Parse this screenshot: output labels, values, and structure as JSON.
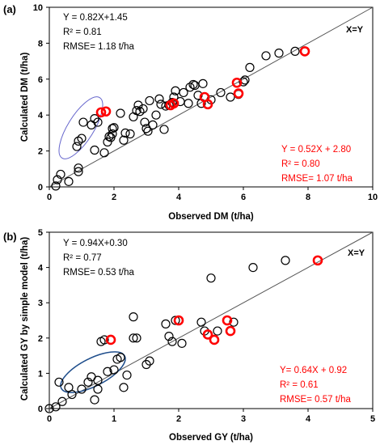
{
  "chart_data": [
    {
      "type": "scatter",
      "panel_label": "(a)",
      "xlabel": "Observed DM (t/ha)",
      "ylabel": "Calculated DM (t/ha)",
      "xlim": [
        0,
        10
      ],
      "ylim": [
        0,
        10
      ],
      "xticks": [
        0,
        2,
        4,
        6,
        8,
        10
      ],
      "yticks": [
        0,
        2,
        4,
        6,
        8,
        10
      ],
      "grid": false,
      "one_to_one_line_label": "X=Y",
      "annotations": {
        "black": [
          "Y = 0.82X+1.45",
          "R² = 0.81",
          "RMSE= 1.18 t/ha"
        ],
        "red": [
          "Y = 0.52X + 2.80",
          "R² = 0.80",
          "RMSE= 1.07 t/ha"
        ]
      },
      "ellipse_color": "#6666cc",
      "series": [
        {
          "color": "#000000",
          "points": [
            [
              0.2,
              0.05
            ],
            [
              0.25,
              0.4
            ],
            [
              0.35,
              0.7
            ],
            [
              0.6,
              0.3
            ],
            [
              0.9,
              1.05
            ],
            [
              0.9,
              0.85
            ],
            [
              0.85,
              2.25
            ],
            [
              0.9,
              2.55
            ],
            [
              1.0,
              2.7
            ],
            [
              1.05,
              3.6
            ],
            [
              1.3,
              3.45
            ],
            [
              1.4,
              3.8
            ],
            [
              1.5,
              3.6
            ],
            [
              1.4,
              2.05
            ],
            [
              1.7,
              1.9
            ],
            [
              1.8,
              2.5
            ],
            [
              1.85,
              2.8
            ],
            [
              1.9,
              2.75
            ],
            [
              1.95,
              2.95
            ],
            [
              2.0,
              3.3
            ],
            [
              1.95,
              3.25
            ],
            [
              2.2,
              4.1
            ],
            [
              2.3,
              2.6
            ],
            [
              2.35,
              3.0
            ],
            [
              2.5,
              2.95
            ],
            [
              2.6,
              3.9
            ],
            [
              2.7,
              4.25
            ],
            [
              2.75,
              4.55
            ],
            [
              2.8,
              4.2
            ],
            [
              2.9,
              4.35
            ],
            [
              2.95,
              3.6
            ],
            [
              3.0,
              3.25
            ],
            [
              3.05,
              3.1
            ],
            [
              3.1,
              4.8
            ],
            [
              3.2,
              3.45
            ],
            [
              3.3,
              4.0
            ],
            [
              3.4,
              4.9
            ],
            [
              3.45,
              4.6
            ],
            [
              3.55,
              3.2
            ],
            [
              3.6,
              4.5
            ],
            [
              3.7,
              4.55
            ],
            [
              3.8,
              4.7
            ],
            [
              3.85,
              5.0
            ],
            [
              3.9,
              5.35
            ],
            [
              4.05,
              4.75
            ],
            [
              4.15,
              5.25
            ],
            [
              4.3,
              4.65
            ],
            [
              4.35,
              5.55
            ],
            [
              4.45,
              5.7
            ],
            [
              4.5,
              5.65
            ],
            [
              4.6,
              5.1
            ],
            [
              4.7,
              4.65
            ],
            [
              4.75,
              5.75
            ],
            [
              5.0,
              4.85
            ],
            [
              5.3,
              5.25
            ],
            [
              5.6,
              5.0
            ],
            [
              5.85,
              5.15
            ],
            [
              6.0,
              5.85
            ],
            [
              6.05,
              5.95
            ],
            [
              6.2,
              6.65
            ],
            [
              6.7,
              7.3
            ],
            [
              7.1,
              7.45
            ],
            [
              7.6,
              7.55
            ]
          ]
        },
        {
          "color": "#ff0000",
          "points": [
            [
              1.6,
              4.15
            ],
            [
              1.75,
              4.2
            ],
            [
              3.75,
              4.55
            ],
            [
              3.85,
              4.65
            ],
            [
              4.8,
              5.0
            ],
            [
              4.9,
              4.6
            ],
            [
              5.8,
              5.8
            ],
            [
              5.85,
              5.2
            ],
            [
              7.9,
              7.55
            ]
          ]
        }
      ]
    },
    {
      "type": "scatter",
      "panel_label": "(b)",
      "xlabel": "Observed GY (t/ha)",
      "ylabel": "Calculated GY by simple model (t/ha)",
      "xlim": [
        0,
        5
      ],
      "ylim": [
        0,
        5
      ],
      "xticks": [
        0,
        1,
        2,
        3,
        4,
        5
      ],
      "yticks": [
        0,
        1,
        2,
        3,
        4,
        5
      ],
      "grid": false,
      "one_to_one_line_label": "X=Y",
      "annotations": {
        "black": [
          "Y = 0.94X+0.30",
          "R² = 0.77",
          "RMSE= 0.53 t/ha"
        ],
        "red": [
          "Y= 0.64X + 0.92",
          "R² = 0.61",
          "RMSE= 0.57 t/ha"
        ]
      },
      "ellipse_color": "#1f4e8c",
      "series": [
        {
          "color": "#000000",
          "points": [
            [
              0.0,
              0.0
            ],
            [
              0.1,
              0.05
            ],
            [
              0.15,
              0.75
            ],
            [
              0.2,
              0.2
            ],
            [
              0.3,
              0.6
            ],
            [
              0.35,
              0.4
            ],
            [
              0.5,
              0.55
            ],
            [
              0.6,
              0.75
            ],
            [
              0.65,
              0.9
            ],
            [
              0.7,
              0.25
            ],
            [
              0.75,
              0.8
            ],
            [
              0.75,
              0.55
            ],
            [
              0.8,
              1.9
            ],
            [
              0.85,
              1.95
            ],
            [
              0.9,
              1.05
            ],
            [
              1.0,
              1.1
            ],
            [
              1.05,
              1.4
            ],
            [
              1.1,
              1.45
            ],
            [
              1.15,
              0.6
            ],
            [
              1.2,
              0.95
            ],
            [
              1.3,
              2.6
            ],
            [
              1.3,
              2.0
            ],
            [
              1.35,
              2.0
            ],
            [
              1.5,
              1.25
            ],
            [
              1.55,
              1.35
            ],
            [
              1.8,
              2.4
            ],
            [
              1.85,
              2.05
            ],
            [
              1.9,
              1.9
            ],
            [
              1.95,
              2.5
            ],
            [
              2.05,
              1.85
            ],
            [
              2.35,
              2.45
            ],
            [
              2.4,
              2.2
            ],
            [
              2.5,
              3.7
            ],
            [
              2.6,
              2.2
            ],
            [
              2.85,
              2.45
            ],
            [
              3.15,
              4.0
            ],
            [
              3.65,
              4.2
            ]
          ]
        },
        {
          "color": "#ff0000",
          "points": [
            [
              0.95,
              1.95
            ],
            [
              2.0,
              2.5
            ],
            [
              2.45,
              2.1
            ],
            [
              2.55,
              1.95
            ],
            [
              2.75,
              2.5
            ],
            [
              2.8,
              2.2
            ],
            [
              4.15,
              4.2
            ]
          ]
        }
      ]
    }
  ]
}
